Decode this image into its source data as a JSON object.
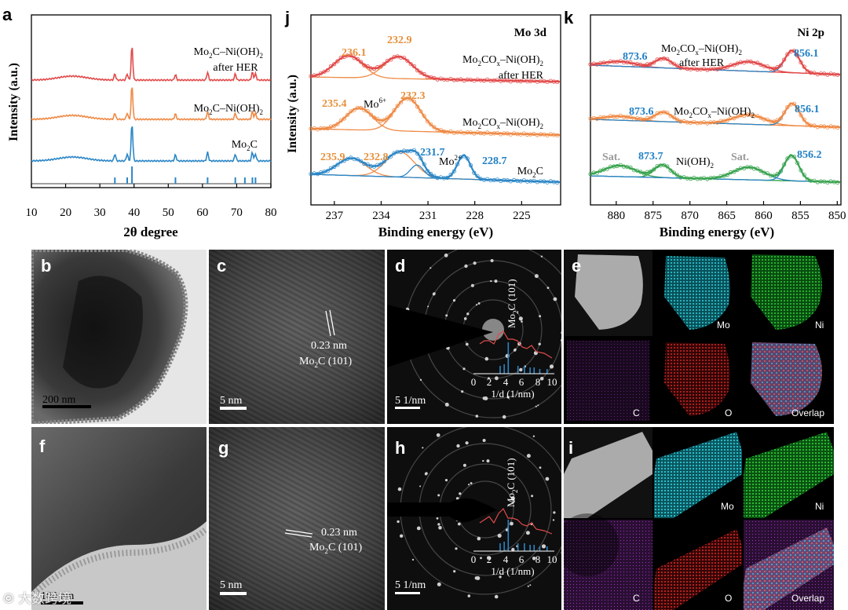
{
  "colors": {
    "red": "#e24a4a",
    "orange": "#ef8a46",
    "blue": "#2b86c6",
    "green": "#3aa34f",
    "label_orange": "#e7903c",
    "label_blue": "#1f7fc4",
    "sat_gray": "#9a9a9a"
  },
  "panel_a": {
    "label": "a",
    "xlabel": "2θ degree",
    "ylabel": "Intensity (a.u.)",
    "xticks": [
      "10",
      "20",
      "30",
      "40",
      "50",
      "60",
      "70",
      "80"
    ],
    "series": [
      {
        "name_main": "Mo",
        "name_sub": "2",
        "name_rest": "C–Ni(OH)",
        "name_sub2": "2",
        "name_line2": "after HER",
        "color_key": "red"
      },
      {
        "name_main": "Mo",
        "name_sub": "2",
        "name_rest": "C–Ni(OH)",
        "name_sub2": "2",
        "color_key": "orange"
      },
      {
        "name_main": "Mo",
        "name_sub": "2",
        "name_rest": "C",
        "color_key": "blue"
      }
    ],
    "chart_data": {
      "type": "line",
      "x_range": [
        10,
        80
      ],
      "peaks_2theta": [
        34.4,
        38.0,
        39.4,
        52.1,
        61.5,
        69.6,
        74.6,
        75.5
      ],
      "reference_ticks_2theta": [
        34.4,
        38.0,
        39.4,
        52.1,
        61.5,
        69.6,
        72.4,
        74.6,
        75.5
      ]
    }
  },
  "panel_j": {
    "label": "j",
    "title": "Mo 3d",
    "xlabel": "Binding energy (eV)",
    "ylabel": "Intensity (a.u.)",
    "xticks": [
      "237",
      "234",
      "231",
      "228",
      "225"
    ],
    "chart_data": {
      "type": "line",
      "x_range": [
        238.5,
        222.5
      ],
      "reversed": true,
      "rows": [
        {
          "peaks": [
            236.1,
            232.9
          ]
        },
        {
          "peaks": [
            235.4,
            232.3
          ]
        },
        {
          "peaks": [
            235.9,
            232.8,
            231.7,
            228.7
          ]
        }
      ]
    },
    "peak_labels": [
      {
        "text": "236.1",
        "color_key": "label_orange"
      },
      {
        "text": "232.9",
        "color_key": "label_orange"
      },
      {
        "text": "235.4",
        "color_key": "label_orange"
      },
      {
        "text": "232.3",
        "color_key": "label_orange"
      },
      {
        "text": "235.9",
        "color_key": "label_orange"
      },
      {
        "text": "232.8",
        "color_key": "label_orange"
      },
      {
        "text": "231.7",
        "color_key": "label_blue"
      },
      {
        "text": "228.7",
        "color_key": "label_blue"
      }
    ],
    "annotations": {
      "mo6": "Mo",
      "mo6_sup": "6+",
      "mo2": "Mo",
      "mo2_sup": "2+"
    },
    "names": {
      "top_a": "Mo",
      "top_a_sub": "2",
      "top_b": "CO",
      "top_b_sub": "x",
      "top_c": "–Ni(OH)",
      "top_c_sub": "2",
      "top_line2": "after HER",
      "mid_a": "Mo",
      "mid_a_sub": "2",
      "mid_b": "CO",
      "mid_b_sub": "x",
      "mid_c": "–Ni(OH)",
      "mid_c_sub": "2",
      "bot_a": "Mo",
      "bot_a_sub": "2",
      "bot_b": "C"
    }
  },
  "panel_k": {
    "label": "k",
    "title": "Ni 2p",
    "xlabel": "Binding energy (eV)",
    "xticks": [
      "880",
      "875",
      "870",
      "865",
      "860",
      "855",
      "850"
    ],
    "chart_data": {
      "type": "line",
      "x_range": [
        883.5,
        849.5
      ],
      "reversed": true,
      "rows": [
        {
          "peaks": [
            873.6,
            856.1
          ]
        },
        {
          "peaks": [
            873.6,
            856.1
          ]
        },
        {
          "peaks": [
            873.7,
            856.2
          ]
        }
      ]
    },
    "peak_labels": [
      "873.6",
      "856.1",
      "873.6",
      "856.1",
      "873.7",
      "856.2"
    ],
    "sat": "Sat.",
    "names": {
      "top_a": "Mo",
      "top_a_sub": "2",
      "top_b": "CO",
      "top_b_sub": "x",
      "top_c": "–Ni(OH)",
      "top_c_sub": "2",
      "top_line2": "after HER",
      "mid_a": "Mo",
      "mid_a_sub": "2",
      "mid_b": "CO",
      "mid_b_sub": "x",
      "mid_c": "–Ni(OH)",
      "mid_c_sub": "2",
      "bot_a": "Ni(OH)",
      "bot_a_sub": "2"
    }
  },
  "panel_b": {
    "label": "b",
    "scale": "200 nm"
  },
  "panel_c": {
    "label": "c",
    "scale": "5 nm",
    "lattice": "0.23 nm",
    "phase_a": "Mo",
    "phase_sub": "2",
    "phase_b": "C  (101)"
  },
  "panel_d": {
    "label": "d",
    "scale": "5 1/nm",
    "ring_a": "Mo",
    "ring_sub": "2",
    "ring_b": "C (101)",
    "inset_xticks": [
      "0",
      "2",
      "4",
      "6",
      "8",
      "10"
    ],
    "inset_xlabel": "1/d (1/nm)"
  },
  "panel_e": {
    "label": "e",
    "maps": [
      "Mo",
      "Ni",
      "C",
      "O",
      "Overlap"
    ]
  },
  "panel_f": {
    "label": "f",
    "scale": "100 nm"
  },
  "panel_g": {
    "label": "g",
    "scale": "5 nm",
    "lattice": "0.23 nm",
    "phase_a": "Mo",
    "phase_sub": "2",
    "phase_b": "C  (101)"
  },
  "panel_h": {
    "label": "h",
    "scale": "5 1/nm",
    "ring_a": "Mo",
    "ring_sub": "2",
    "ring_b": "C (101)",
    "inset_xticks": [
      "0",
      "2",
      "4",
      "6",
      "8",
      "10"
    ],
    "inset_xlabel": "1/d (1/nm)"
  },
  "panel_i": {
    "label": "i",
    "maps": [
      "Mo",
      "Ni",
      "C",
      "O",
      "Overlap"
    ]
  },
  "watermark": "⦾ 大数跨境"
}
